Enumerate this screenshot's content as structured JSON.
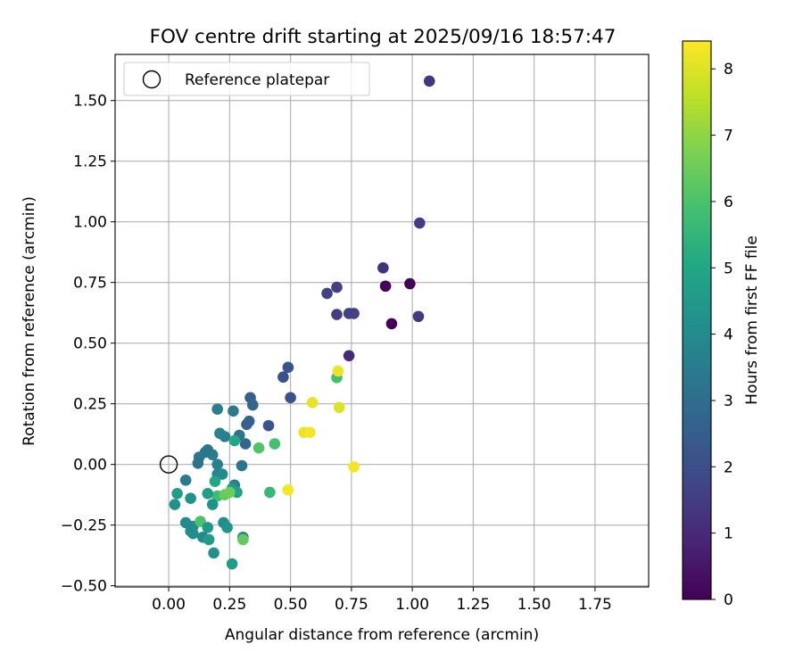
{
  "chart_data": {
    "type": "scatter",
    "title": "FOV centre drift starting at 2025/09/16 18:57:47",
    "xlabel": "Angular distance from reference (arcmin)",
    "ylabel": "Rotation from reference (arcmin)",
    "xlim": [
      -0.22,
      1.97
    ],
    "ylim": [
      -0.505,
      1.69
    ],
    "xticks": [
      "0.00",
      "0.25",
      "0.50",
      "0.75",
      "1.00",
      "1.25",
      "1.50",
      "1.75"
    ],
    "xtick_values": [
      0,
      0.25,
      0.5,
      0.75,
      1.0,
      1.25,
      1.5,
      1.75
    ],
    "yticks": [
      "−0.50",
      "−0.25",
      "0.00",
      "0.25",
      "0.50",
      "0.75",
      "1.00",
      "1.25",
      "1.50"
    ],
    "ytick_values": [
      -0.5,
      -0.25,
      0,
      0.25,
      0.5,
      0.75,
      1.0,
      1.25,
      1.5
    ],
    "grid": true,
    "legend": {
      "label": "Reference platepar",
      "placement": "upper-left"
    },
    "reference_point": {
      "x": 0.0,
      "y": 0.0
    },
    "colorbar": {
      "label": "Hours from first FF file",
      "range": [
        0,
        8.42
      ],
      "ticks": [
        "0",
        "1",
        "2",
        "3",
        "4",
        "5",
        "6",
        "7",
        "8"
      ],
      "tick_values": [
        0,
        1,
        2,
        3,
        4,
        5,
        6,
        7,
        8
      ],
      "colormap": "viridis"
    },
    "series": [
      {
        "points": [
          {
            "x": 1.07,
            "y": 1.58,
            "c": 1.3
          },
          {
            "x": 1.03,
            "y": 0.995,
            "c": 1.5
          },
          {
            "x": 0.88,
            "y": 0.81,
            "c": 1.2
          },
          {
            "x": 0.89,
            "y": 0.735,
            "c": 0.1
          },
          {
            "x": 0.99,
            "y": 0.745,
            "c": 0.1
          },
          {
            "x": 0.915,
            "y": 0.58,
            "c": 0.05
          },
          {
            "x": 1.025,
            "y": 0.61,
            "c": 1.4
          },
          {
            "x": 0.65,
            "y": 0.705,
            "c": 1.6
          },
          {
            "x": 0.69,
            "y": 0.73,
            "c": 1.6
          },
          {
            "x": 0.69,
            "y": 0.618,
            "c": 1.5
          },
          {
            "x": 0.74,
            "y": 0.622,
            "c": 1.6
          },
          {
            "x": 0.76,
            "y": 0.622,
            "c": 1.6
          },
          {
            "x": 0.74,
            "y": 0.448,
            "c": 1.0
          },
          {
            "x": 0.49,
            "y": 0.4,
            "c": 2.2
          },
          {
            "x": 0.47,
            "y": 0.36,
            "c": 2.1
          },
          {
            "x": 0.5,
            "y": 0.275,
            "c": 2.1
          },
          {
            "x": 0.41,
            "y": 0.16,
            "c": 2.2
          },
          {
            "x": 0.335,
            "y": 0.275,
            "c": 2.6
          },
          {
            "x": 0.345,
            "y": 0.245,
            "c": 2.8
          },
          {
            "x": 0.33,
            "y": 0.178,
            "c": 2.7
          },
          {
            "x": 0.32,
            "y": 0.165,
            "c": 2.6
          },
          {
            "x": 0.315,
            "y": 0.085,
            "c": 2.8
          },
          {
            "x": 0.29,
            "y": 0.12,
            "c": 3.2
          },
          {
            "x": 0.265,
            "y": 0.22,
            "c": 3.4
          },
          {
            "x": 0.2,
            "y": 0.228,
            "c": 3.6
          },
          {
            "x": 0.21,
            "y": 0.128,
            "c": 3.7
          },
          {
            "x": 0.23,
            "y": 0.115,
            "c": 3.6
          },
          {
            "x": 0.27,
            "y": 0.098,
            "c": 5.0
          },
          {
            "x": 0.3,
            "y": -0.005,
            "c": 3.3
          },
          {
            "x": 0.2,
            "y": 0.0,
            "c": 3.6
          },
          {
            "x": 0.18,
            "y": 0.04,
            "c": 3.5
          },
          {
            "x": 0.16,
            "y": 0.06,
            "c": 3.4
          },
          {
            "x": 0.15,
            "y": 0.05,
            "c": 3.3
          },
          {
            "x": 0.125,
            "y": 0.03,
            "c": 3.3
          },
          {
            "x": 0.12,
            "y": 0.005,
            "c": 3.2
          },
          {
            "x": 0.2,
            "y": -0.04,
            "c": 3.8
          },
          {
            "x": 0.22,
            "y": -0.04,
            "c": 4.0
          },
          {
            "x": 0.19,
            "y": -0.07,
            "c": 5.0
          },
          {
            "x": 0.27,
            "y": -0.085,
            "c": 3.6
          },
          {
            "x": 0.26,
            "y": -0.1,
            "c": 4.5
          },
          {
            "x": 0.28,
            "y": -0.115,
            "c": 4.8
          },
          {
            "x": 0.2,
            "y": -0.13,
            "c": 5.8
          },
          {
            "x": 0.23,
            "y": -0.125,
            "c": 6.4
          },
          {
            "x": 0.25,
            "y": -0.115,
            "c": 6.5
          },
          {
            "x": 0.16,
            "y": -0.12,
            "c": 4.7
          },
          {
            "x": 0.07,
            "y": -0.065,
            "c": 3.5
          },
          {
            "x": 0.035,
            "y": -0.12,
            "c": 4.7
          },
          {
            "x": 0.025,
            "y": -0.165,
            "c": 4.2
          },
          {
            "x": 0.09,
            "y": -0.14,
            "c": 4.2
          },
          {
            "x": 0.18,
            "y": -0.165,
            "c": 4.2
          },
          {
            "x": 0.07,
            "y": -0.24,
            "c": 4.0
          },
          {
            "x": 0.1,
            "y": -0.255,
            "c": 4.0
          },
          {
            "x": 0.13,
            "y": -0.235,
            "c": 6.0
          },
          {
            "x": 0.225,
            "y": -0.24,
            "c": 4.1
          },
          {
            "x": 0.24,
            "y": -0.26,
            "c": 4.3
          },
          {
            "x": 0.16,
            "y": -0.26,
            "c": 4.5
          },
          {
            "x": 0.09,
            "y": -0.275,
            "c": 4.1
          },
          {
            "x": 0.1,
            "y": -0.285,
            "c": 4.1
          },
          {
            "x": 0.14,
            "y": -0.3,
            "c": 4.0
          },
          {
            "x": 0.165,
            "y": -0.31,
            "c": 4.6
          },
          {
            "x": 0.305,
            "y": -0.3,
            "c": 3.7
          },
          {
            "x": 0.305,
            "y": -0.31,
            "c": 6.4
          },
          {
            "x": 0.185,
            "y": -0.365,
            "c": 4.2
          },
          {
            "x": 0.26,
            "y": -0.41,
            "c": 4.6
          },
          {
            "x": 0.37,
            "y": 0.068,
            "c": 6.1
          },
          {
            "x": 0.435,
            "y": 0.085,
            "c": 5.9
          },
          {
            "x": 0.415,
            "y": -0.115,
            "c": 5.6
          },
          {
            "x": 0.69,
            "y": 0.358,
            "c": 5.9
          },
          {
            "x": 0.695,
            "y": 0.385,
            "c": 8.2
          },
          {
            "x": 0.59,
            "y": 0.255,
            "c": 8.1
          },
          {
            "x": 0.7,
            "y": 0.235,
            "c": 8.0
          },
          {
            "x": 0.555,
            "y": 0.132,
            "c": 8.2
          },
          {
            "x": 0.58,
            "y": 0.132,
            "c": 8.3
          },
          {
            "x": 0.49,
            "y": -0.105,
            "c": 8.3
          },
          {
            "x": 0.76,
            "y": -0.01,
            "c": 8.3
          }
        ]
      }
    ]
  }
}
